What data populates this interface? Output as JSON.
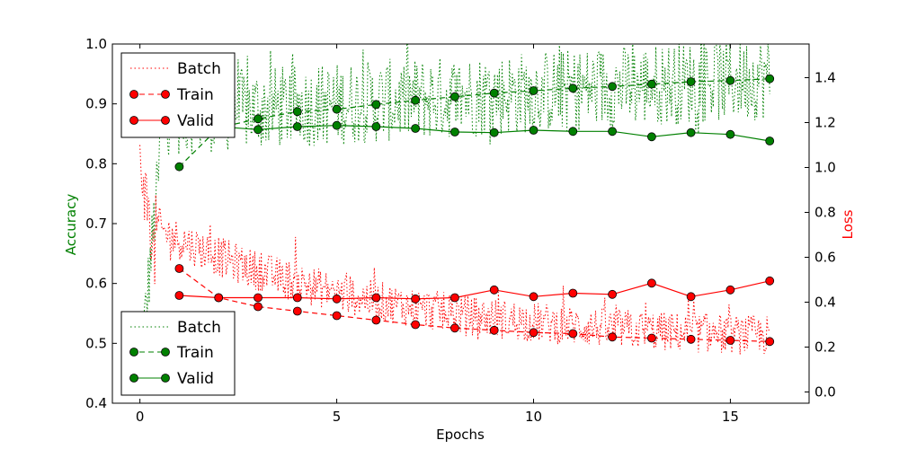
{
  "chart_data": {
    "type": "line",
    "xlabel": "Epochs",
    "ylabel_left": "Accuracy",
    "ylabel_right": "Loss",
    "xlim": [
      -0.7,
      17.0
    ],
    "ylim_left": [
      0.4,
      1.0
    ],
    "ylim_right": [
      -0.05,
      1.55
    ],
    "x_ticks": [
      0,
      5,
      10,
      15
    ],
    "y_ticks_left": [
      0.4,
      0.5,
      0.6,
      0.7,
      0.8,
      0.9,
      1.0
    ],
    "y_ticks_right": [
      0.0,
      0.2,
      0.4,
      0.6,
      0.8,
      1.0,
      1.2,
      1.4
    ],
    "colors": {
      "accuracy": "#008000",
      "loss": "#ff0000"
    },
    "epochs": [
      1,
      2,
      3,
      4,
      5,
      6,
      7,
      8,
      9,
      10,
      11,
      12,
      13,
      14,
      15,
      16
    ],
    "series": [
      {
        "name": "Train",
        "metric": "accuracy",
        "axis": "left",
        "style": "dashed",
        "values": [
          0.795,
          0.86,
          0.875,
          0.887,
          0.891,
          0.899,
          0.906,
          0.912,
          0.918,
          0.922,
          0.926,
          0.929,
          0.933,
          0.937,
          0.939,
          0.942
        ]
      },
      {
        "name": "Valid",
        "metric": "accuracy",
        "axis": "left",
        "style": "solid",
        "values": [
          0.868,
          0.862,
          0.857,
          0.862,
          0.864,
          0.862,
          0.859,
          0.853,
          0.852,
          0.856,
          0.854,
          0.854,
          0.845,
          0.852,
          0.849,
          0.838
        ]
      },
      {
        "name": "Train",
        "metric": "loss",
        "axis": "right",
        "style": "dashed",
        "values": [
          0.55,
          0.42,
          0.38,
          0.36,
          0.34,
          0.32,
          0.3,
          0.285,
          0.275,
          0.265,
          0.26,
          0.245,
          0.24,
          0.235,
          0.23,
          0.225
        ]
      },
      {
        "name": "Valid",
        "metric": "loss",
        "axis": "right",
        "style": "solid",
        "values": [
          0.43,
          0.42,
          0.42,
          0.42,
          0.415,
          0.42,
          0.415,
          0.42,
          0.455,
          0.425,
          0.44,
          0.435,
          0.485,
          0.425,
          0.455,
          0.495
        ]
      }
    ],
    "batch_series": [
      {
        "name": "Batch",
        "metric": "accuracy",
        "axis": "left",
        "style": "dotted"
      },
      {
        "name": "Batch",
        "metric": "loss",
        "axis": "right",
        "style": "dotted"
      }
    ],
    "legends": [
      {
        "placement": "top-left",
        "metric": "loss",
        "entries": [
          "Batch",
          "Train",
          "Valid"
        ]
      },
      {
        "placement": "bottom-left",
        "metric": "accuracy",
        "entries": [
          "Batch",
          "Train",
          "Valid"
        ]
      }
    ]
  }
}
